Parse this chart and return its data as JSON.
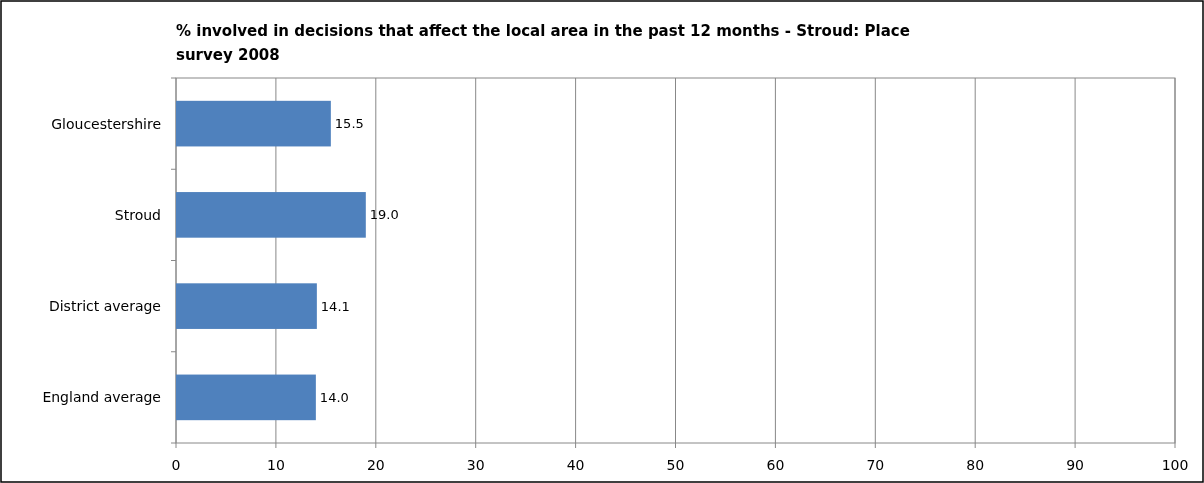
{
  "chart_data": {
    "type": "bar",
    "orientation": "horizontal",
    "title": "% involved in decisions that affect the local area in the past 12 months - Stroud: Place survey 2008",
    "categories": [
      "Gloucestershire",
      "Stroud",
      "District average",
      "England average"
    ],
    "values": [
      15.5,
      19.0,
      14.1,
      14.0
    ],
    "color": "#4f81bd",
    "value_labels": [
      "15.5",
      "19.0",
      "14.1",
      "14.0"
    ],
    "xlim": [
      0,
      100
    ],
    "xticks": [
      0,
      10,
      20,
      30,
      40,
      50,
      60,
      70,
      80,
      90,
      100
    ],
    "grid": "x"
  }
}
